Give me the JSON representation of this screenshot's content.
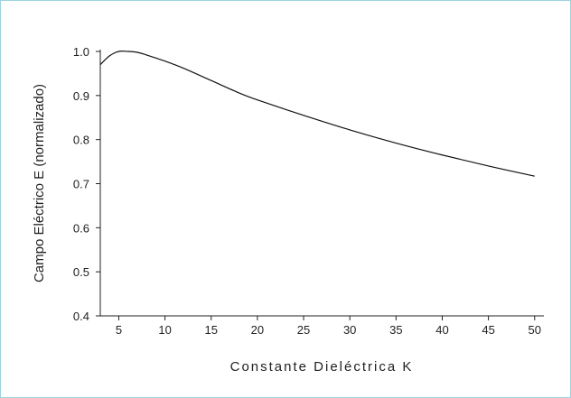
{
  "chart_data": {
    "type": "line",
    "title": "",
    "xlabel": "Constante Dieléctrica K",
    "ylabel": "Campo Eléctrico E (normalizado)",
    "xlim": [
      3,
      51
    ],
    "ylim": [
      0.4,
      1.0
    ],
    "xticks": [
      5,
      10,
      15,
      20,
      25,
      30,
      35,
      40,
      45,
      50
    ],
    "yticks": [
      0.4,
      0.5,
      0.6,
      0.7,
      0.8,
      0.9,
      1.0
    ],
    "xtick_labels": [
      "5",
      "10",
      "15",
      "20",
      "25",
      "30",
      "35",
      "40",
      "45",
      "50"
    ],
    "ytick_labels": [
      "0.4",
      "0.5",
      "0.6",
      "0.7",
      "0.8",
      "0.9",
      "1.0"
    ],
    "grid": false,
    "series": [
      {
        "name": "",
        "x": [
          3,
          4,
          5,
          6,
          7,
          8,
          10,
          12,
          15,
          18,
          20,
          25,
          30,
          35,
          40,
          45,
          50
        ],
        "y": [
          0.97,
          0.99,
          1.0,
          1.0,
          0.998,
          0.992,
          0.978,
          0.962,
          0.934,
          0.906,
          0.89,
          0.855,
          0.822,
          0.792,
          0.765,
          0.74,
          0.717
        ]
      }
    ]
  }
}
